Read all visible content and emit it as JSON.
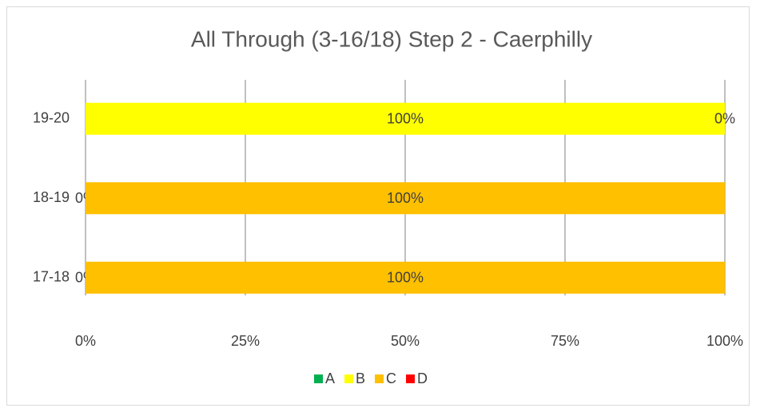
{
  "chart_data": {
    "type": "bar",
    "orientation": "horizontal",
    "stacked": true,
    "title": "All Through (3-16/18) Step 2 - Caerphilly",
    "categories": [
      "19-20",
      "18-19",
      "17-18"
    ],
    "series": [
      {
        "name": "A",
        "color": "#00b050",
        "values": [
          null,
          null,
          null
        ],
        "value_labels": [
          null,
          null,
          null
        ]
      },
      {
        "name": "B",
        "color": "#ffff00",
        "values": [
          100,
          0,
          0
        ],
        "value_labels": [
          "100%",
          "0%",
          "0%"
        ]
      },
      {
        "name": "C",
        "color": "#ffc000",
        "values": [
          0,
          100,
          100
        ],
        "value_labels": [
          "0%",
          "100%",
          "100%"
        ]
      },
      {
        "name": "D",
        "color": "#ff0000",
        "values": [
          null,
          null,
          null
        ],
        "value_labels": [
          null,
          null,
          null
        ]
      }
    ],
    "xlim": [
      0,
      100
    ],
    "xticks": [
      {
        "value": 0,
        "label": "0%"
      },
      {
        "value": 25,
        "label": "25%"
      },
      {
        "value": 50,
        "label": "50%"
      },
      {
        "value": 75,
        "label": "75%"
      },
      {
        "value": 100,
        "label": "100%"
      }
    ],
    "grid": true,
    "legend": "bottom"
  }
}
